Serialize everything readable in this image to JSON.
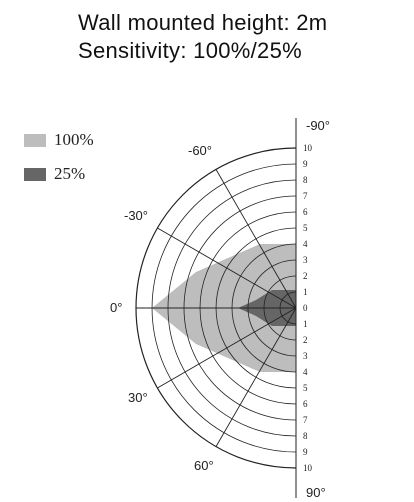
{
  "header": {
    "line1": "Wall mounted height: 2m",
    "line2": "Sensitivity: 100%/25%"
  },
  "legend": [
    {
      "label": "100%",
      "color": "#bdbdbd"
    },
    {
      "label": "25%",
      "color": "#666666"
    }
  ],
  "diagram": {
    "angle_labels": [
      "-90°",
      "-60°",
      "-30°",
      "0°",
      "30°",
      "60°",
      "90°"
    ],
    "ring_labels": [
      "1",
      "2",
      "3",
      "4",
      "5",
      "6",
      "7",
      "8",
      "9",
      "10"
    ],
    "center_label": "0",
    "max_ring": 10,
    "zone_100_reach": 9,
    "zone_25_reach": 3.5
  }
}
